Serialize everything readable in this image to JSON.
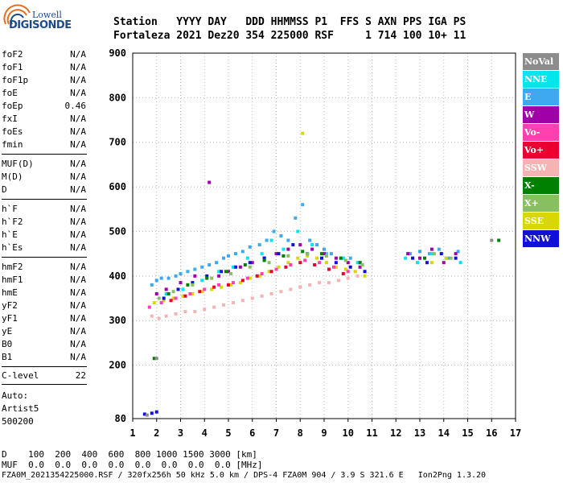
{
  "logo": {
    "brand_top": "Lowell",
    "brand_main": "DIGISONDE"
  },
  "header": {
    "line1": "Station   YYYY DAY   DDD HHMMSS P1  FFS S AXN PPS IGA PS",
    "line2": "Fortaleza 2021 Dez20 354 225000 RSF     1 714 100 10+ 11"
  },
  "params_group1": [
    {
      "name": "foF2",
      "value": "N/A"
    },
    {
      "name": "foF1",
      "value": "N/A"
    },
    {
      "name": "foF1p",
      "value": "N/A"
    },
    {
      "name": "foE",
      "value": "N/A"
    },
    {
      "name": "foEp",
      "value": "0.46"
    },
    {
      "name": "fxI",
      "value": "N/A"
    },
    {
      "name": "foEs",
      "value": "N/A"
    },
    {
      "name": "fmin",
      "value": "N/A"
    }
  ],
  "params_group2": [
    {
      "name": "MUF(D)",
      "value": "N/A"
    },
    {
      "name": "M(D)",
      "value": "N/A"
    },
    {
      "name": "D",
      "value": "N/A"
    }
  ],
  "params_group3": [
    {
      "name": "h`F",
      "value": "N/A"
    },
    {
      "name": "h`F2",
      "value": "N/A"
    },
    {
      "name": "h`E",
      "value": "N/A"
    },
    {
      "name": "h`Es",
      "value": "N/A"
    }
  ],
  "params_group4": [
    {
      "name": "hmF2",
      "value": "N/A"
    },
    {
      "name": "hmF1",
      "value": "N/A"
    },
    {
      "name": "hmE",
      "value": "N/A"
    },
    {
      "name": "yF2",
      "value": "N/A"
    },
    {
      "name": "yF1",
      "value": "N/A"
    },
    {
      "name": "yE",
      "value": "N/A"
    },
    {
      "name": "B0",
      "value": "N/A"
    },
    {
      "name": "B1",
      "value": "N/A"
    }
  ],
  "params_group5": [
    {
      "name": "C-level",
      "value": "22"
    }
  ],
  "auto": {
    "line1": "Auto:",
    "line2": "Artist5",
    "line3": "500200"
  },
  "footer": {
    "line_d": "D    100  200  400  600  800 1000 1500 3000 [km]",
    "line_muf": "MUF  0.0  0.0  0.0  0.0  0.0  0.0  0.0  0.0 [MHz]",
    "line_file": "FZA0M_2021354225000.RSF / 320fx256h 50 kHz 5.0 km / DPS-4 FZA0M 904 / 3.9 S 321.6 E   Ion2Png 1.3.20"
  },
  "legend": [
    {
      "label": "NoVal",
      "color": "#8c8c8c"
    },
    {
      "label": "NNE",
      "color": "#00e5ee"
    },
    {
      "label": "E",
      "color": "#3ea8f0"
    },
    {
      "label": "W",
      "color": "#a000a8"
    },
    {
      "label": "Vo-",
      "color": "#ff40b0"
    },
    {
      "label": "Vo+",
      "color": "#e80030"
    },
    {
      "label": "SSW",
      "color": "#f4b4b4"
    },
    {
      "label": "X-",
      "color": "#008000"
    },
    {
      "label": "X+",
      "color": "#88c060"
    },
    {
      "label": "SSE",
      "color": "#d8d800"
    },
    {
      "label": "NNW",
      "color": "#1010d8"
    }
  ],
  "chart_data": {
    "type": "scatter",
    "title": "",
    "xlabel": "",
    "ylabel": "",
    "xlim": [
      1,
      17
    ],
    "ylim": [
      80,
      900
    ],
    "x_ticks": [
      1,
      2,
      3,
      4,
      5,
      6,
      7,
      8,
      9,
      10,
      11,
      12,
      13,
      14,
      15,
      16,
      17
    ],
    "y_ticks": [
      80,
      200,
      300,
      400,
      500,
      600,
      700,
      800,
      900
    ],
    "grid": true,
    "legend_position": "right",
    "series": [
      {
        "name": "E",
        "color": "#3ea8f0",
        "x": [
          1.8,
          2.0,
          2.2,
          2.5,
          2.8,
          3.0,
          3.3,
          3.6,
          3.9,
          4.2,
          4.5,
          4.8,
          5.0,
          5.3,
          5.6,
          5.9,
          6.3,
          6.6,
          6.9,
          7.2,
          7.5,
          7.8,
          8.1,
          8.4,
          8.7,
          9.0,
          9.3,
          9.7,
          10.1,
          10.5,
          12.6,
          13.0,
          13.4,
          13.8,
          14.2,
          14.6
        ],
        "y": [
          380,
          390,
          395,
          395,
          400,
          405,
          410,
          415,
          420,
          425,
          430,
          440,
          445,
          450,
          455,
          465,
          470,
          480,
          500,
          490,
          480,
          530,
          560,
          480,
          470,
          460,
          450,
          440,
          440,
          430,
          450,
          455,
          450,
          460,
          440,
          455
        ]
      },
      {
        "name": "NNE",
        "color": "#00e5ee",
        "x": [
          2.4,
          3.1,
          3.9,
          4.6,
          5.2,
          5.8,
          6.4,
          6.8,
          7.3,
          7.9,
          8.5,
          9.1,
          9.8,
          10.4,
          12.4,
          12.9,
          13.5,
          14.1,
          14.7
        ],
        "y": [
          360,
          370,
          390,
          410,
          420,
          440,
          450,
          480,
          460,
          500,
          470,
          450,
          440,
          430,
          440,
          430,
          450,
          440,
          430
        ]
      },
      {
        "name": "SSW",
        "color": "#f4b4b4",
        "x": [
          1.8,
          2.1,
          2.4,
          2.8,
          3.2,
          3.6,
          4.0,
          4.4,
          4.8,
          5.2,
          5.6,
          6.0,
          6.4,
          6.8,
          7.2,
          7.6,
          8.0,
          8.4,
          8.8,
          9.2,
          9.6,
          10.0,
          10.4
        ],
        "y": [
          310,
          305,
          310,
          315,
          320,
          320,
          325,
          330,
          335,
          340,
          345,
          350,
          355,
          360,
          365,
          370,
          375,
          380,
          385,
          385,
          390,
          395,
          400
        ]
      },
      {
        "name": "SSE",
        "color": "#d8d800",
        "x": [
          1.9,
          2.3,
          2.7,
          3.1,
          3.5,
          3.9,
          4.3,
          4.7,
          5.1,
          5.5,
          5.9,
          6.3,
          6.7,
          7.1,
          7.5,
          7.9,
          8.1,
          8.3,
          8.7,
          9.1,
          9.5,
          9.9,
          10.3,
          10.7,
          13.5,
          14.1
        ],
        "y": [
          340,
          345,
          350,
          355,
          360,
          365,
          370,
          375,
          380,
          385,
          395,
          400,
          410,
          420,
          430,
          440,
          720,
          445,
          440,
          430,
          420,
          415,
          410,
          400,
          430,
          440
        ]
      },
      {
        "name": "W",
        "color": "#a000a8",
        "x": [
          2.0,
          2.4,
          3.0,
          3.6,
          4.2,
          4.6,
          5.0,
          5.5,
          6.0,
          6.5,
          7.0,
          7.5,
          8.0,
          8.5,
          9.0,
          9.5,
          10.0,
          10.5,
          12.5,
          13.0,
          13.5,
          14.0,
          14.5
        ],
        "y": [
          360,
          370,
          385,
          400,
          610,
          400,
          410,
          420,
          430,
          440,
          450,
          460,
          470,
          460,
          450,
          440,
          430,
          420,
          450,
          440,
          460,
          430,
          450
        ]
      },
      {
        "name": "NNW",
        "color": "#1010d8",
        "x": [
          1.5,
          1.8,
          2.0,
          2.3,
          2.9,
          3.5,
          4.1,
          4.7,
          5.3,
          5.9,
          6.5,
          7.1,
          7.7,
          8.3,
          8.9,
          9.5,
          10.1,
          10.7,
          12.7,
          13.3,
          13.9,
          14.5
        ],
        "y": [
          90,
          92,
          95,
          350,
          370,
          385,
          400,
          410,
          420,
          430,
          440,
          450,
          470,
          450,
          440,
          430,
          420,
          410,
          440,
          430,
          450,
          440
        ]
      },
      {
        "name": "Vo-",
        "color": "#ff40b0",
        "x": [
          1.7,
          2.2,
          2.8,
          3.4,
          4.0,
          4.6,
          5.2,
          5.8,
          6.4,
          7.0,
          7.6,
          8.2,
          8.8,
          9.4,
          10.0
        ],
        "y": [
          330,
          340,
          350,
          360,
          370,
          380,
          385,
          395,
          405,
          415,
          425,
          435,
          430,
          420,
          410
        ]
      },
      {
        "name": "Vo+",
        "color": "#e80030",
        "x": [
          2.6,
          3.2,
          3.8,
          4.4,
          5.0,
          5.6,
          6.2,
          6.8,
          7.4,
          8.0,
          8.6,
          9.2,
          9.8
        ],
        "y": [
          345,
          355,
          365,
          375,
          380,
          390,
          400,
          410,
          420,
          430,
          425,
          415,
          405
        ]
      },
      {
        "name": "X-",
        "color": "#008000",
        "x": [
          1.9,
          2.5,
          3.3,
          4.1,
          4.9,
          5.7,
          6.5,
          7.3,
          8.1,
          8.9,
          9.7,
          10.5,
          13.2,
          16.3
        ],
        "y": [
          215,
          360,
          380,
          395,
          410,
          425,
          435,
          445,
          455,
          450,
          440,
          430,
          440,
          480
        ]
      },
      {
        "name": "X+",
        "color": "#88c060",
        "x": [
          2.1,
          2.7,
          3.5,
          4.3,
          5.1,
          5.9,
          6.7,
          7.5,
          8.3,
          9.1,
          9.9,
          10.6,
          13.6,
          14.3
        ],
        "y": [
          350,
          365,
          380,
          395,
          405,
          420,
          430,
          445,
          450,
          445,
          435,
          425,
          450,
          440
        ]
      },
      {
        "name": "NoVal",
        "color": "#8c8c8c",
        "x": [
          1.6,
          2.0,
          16.0
        ],
        "y": [
          88,
          215,
          480
        ]
      }
    ]
  }
}
